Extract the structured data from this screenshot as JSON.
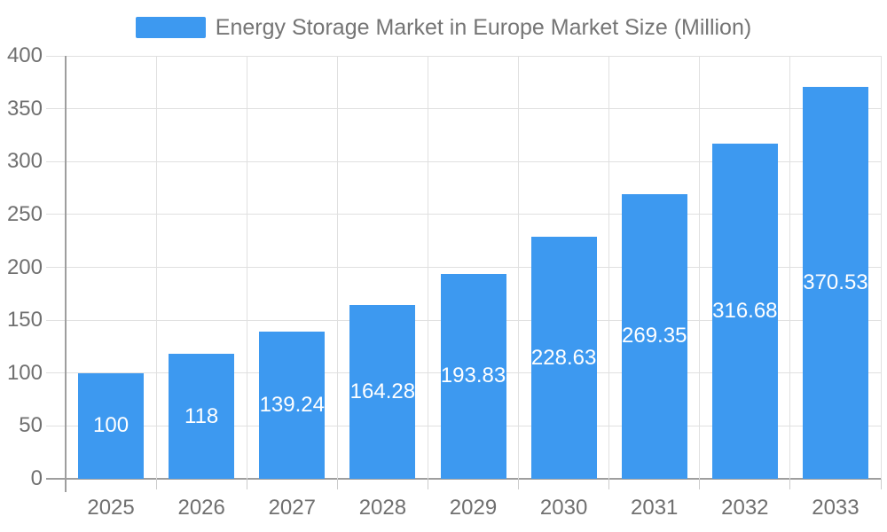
{
  "chart_data": {
    "type": "bar",
    "title": "Energy Storage Market in Europe Market Size (Million)",
    "legend": {
      "label": "Energy Storage Market in Europe Market Size (Million)",
      "position": "top"
    },
    "categories": [
      "2025",
      "2026",
      "2027",
      "2028",
      "2029",
      "2030",
      "2031",
      "2032",
      "2033"
    ],
    "series": [
      {
        "name": "Energy Storage Market in Europe Market Size (Million)",
        "values": [
          100,
          118,
          139.24,
          164.28,
          193.83,
          228.63,
          269.35,
          316.68,
          370.53
        ],
        "value_labels": [
          "100",
          "118",
          "139.24",
          "164.28",
          "193.83",
          "228.63",
          "269.35",
          "316.68",
          "370.53"
        ]
      }
    ],
    "xlabel": "",
    "ylabel": "",
    "ylim": [
      0,
      400
    ],
    "y_tick_step": 50,
    "y_tick_labels": [
      "0",
      "50",
      "100",
      "150",
      "200",
      "250",
      "300",
      "350",
      "400"
    ],
    "grid": true,
    "legend_position": "top",
    "colors": {
      "bar": "#3D99F0",
      "bar_label": "#FFFFFF",
      "axis_text": "#707070",
      "legend_text": "#757575",
      "grid_line": "#E0E0E0",
      "tick_line": "#CCCCCC",
      "axis_line": "#9E9E9E",
      "background": "#FFFFFF"
    }
  }
}
